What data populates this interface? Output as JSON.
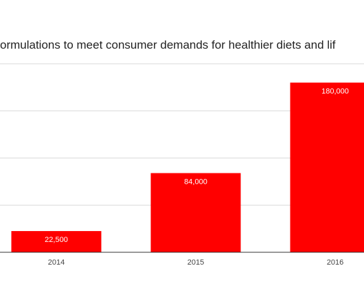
{
  "chart_data": {
    "type": "bar",
    "title": "ormulations to meet consumer demands for healthier diets and lif",
    "categories": [
      "2014",
      "2015",
      "2016"
    ],
    "values": [
      22500,
      84000,
      180000
    ],
    "data_labels": [
      "22,500",
      "84,000",
      "180,000"
    ],
    "xlabel": "",
    "ylabel": "",
    "ylim": [
      0,
      200000
    ],
    "grid": true,
    "legend": "none",
    "bar_color": "#ff0000"
  }
}
